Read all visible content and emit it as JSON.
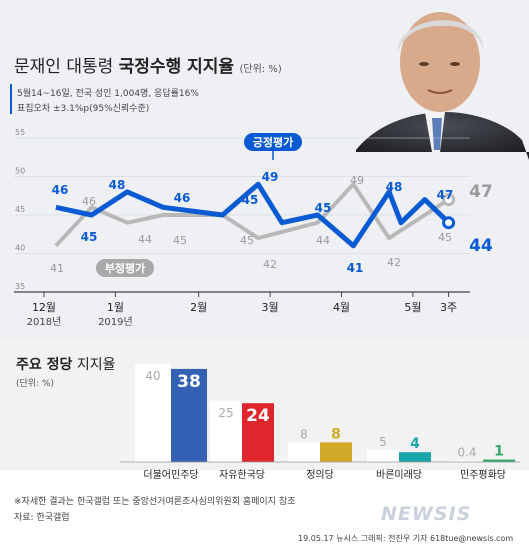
{
  "header": {
    "title_plain": "문재인 대통령",
    "title_bold": "국정수행 지지율",
    "unit": "(단위: %)",
    "survey_line1": "5월14~16일, 전국 성인 1,004명, 응답률16%",
    "survey_line2": "표집오차 ±3.1%p(95%신뢰수준)"
  },
  "colors": {
    "positive": "#0a5bd3",
    "negative": "#b8b8b8",
    "negative_label": "#9a9a9a",
    "top_bg": "#eef0f4",
    "bottom_bg": "#f2f2f2"
  },
  "chart_data": [
    {
      "type": "line",
      "x_labels": [
        {
          "label": "12월",
          "sub": "2018년",
          "index": 0
        },
        {
          "label": "1월",
          "sub": "2019년",
          "index": 3
        },
        {
          "label": "2월",
          "index": 6.5
        },
        {
          "label": "3월",
          "index": 9.5
        },
        {
          "label": "4월",
          "index": 12.5
        },
        {
          "label": "5월",
          "index": 15.5
        },
        {
          "label": "3주",
          "index": 17
        }
      ],
      "yticks": [
        35,
        40,
        45,
        50,
        55
      ],
      "ylim": [
        35,
        55
      ],
      "grid": true,
      "series": [
        {
          "name": "긍정평가",
          "values": [
            46,
            45,
            48,
            46,
            45,
            49,
            44,
            45,
            41,
            48,
            44,
            47,
            44
          ],
          "point_index": [
            0.5,
            2.0,
            3.5,
            5.0,
            7.5,
            9.0,
            10.0,
            11.5,
            13.0,
            14.5,
            15.0,
            16.0,
            17.0
          ]
        },
        {
          "name": "부정평가",
          "values": [
            41,
            46,
            44,
            45,
            45,
            42,
            44,
            49,
            42,
            45,
            47
          ],
          "point_index": [
            0.5,
            2.0,
            3.5,
            5.0,
            7.5,
            9.0,
            11.5,
            13.0,
            14.5,
            16.0,
            17.0
          ]
        }
      ],
      "value_labels": {
        "positive": [
          "46",
          "45",
          "48",
          "46",
          "45",
          "49",
          "45",
          "41",
          "48",
          "47",
          "44"
        ],
        "negative": [
          "41",
          "46",
          "44",
          "45",
          "45",
          "42",
          "44",
          "49",
          "42",
          "45",
          "47"
        ]
      }
    },
    {
      "type": "bar",
      "title_bold": "주요 정당",
      "title_plain": "지지율",
      "unit": "(단위: %)",
      "categories": [
        "더불어민주당",
        "자유한국당",
        "정의당",
        "바른미래당",
        "민주평화당"
      ],
      "series": [
        {
          "values": [
            40,
            25,
            8,
            5,
            0.4
          ],
          "labels": [
            "40",
            "25",
            "8",
            "5",
            "0.4"
          ]
        },
        {
          "values": [
            38,
            24,
            8,
            4,
            1
          ],
          "labels": [
            "38",
            "24",
            "8",
            "4",
            "1"
          ]
        }
      ],
      "party_colors": [
        "#3461b3",
        "#e0262d",
        "#d2a92b",
        "#1aa5aa",
        "#33a86a"
      ]
    }
  ],
  "footer": {
    "note": "※자세한 결과는 한국갤럽 또는 중앙선거여론조사심의위원회 홈페이지 참조",
    "source": "자료: 한국갤럽",
    "credit": "19.05.17 뉴시스 그래픽: 전진우 기자 618tue@newsis.com",
    "watermark": "NEWSIS"
  }
}
